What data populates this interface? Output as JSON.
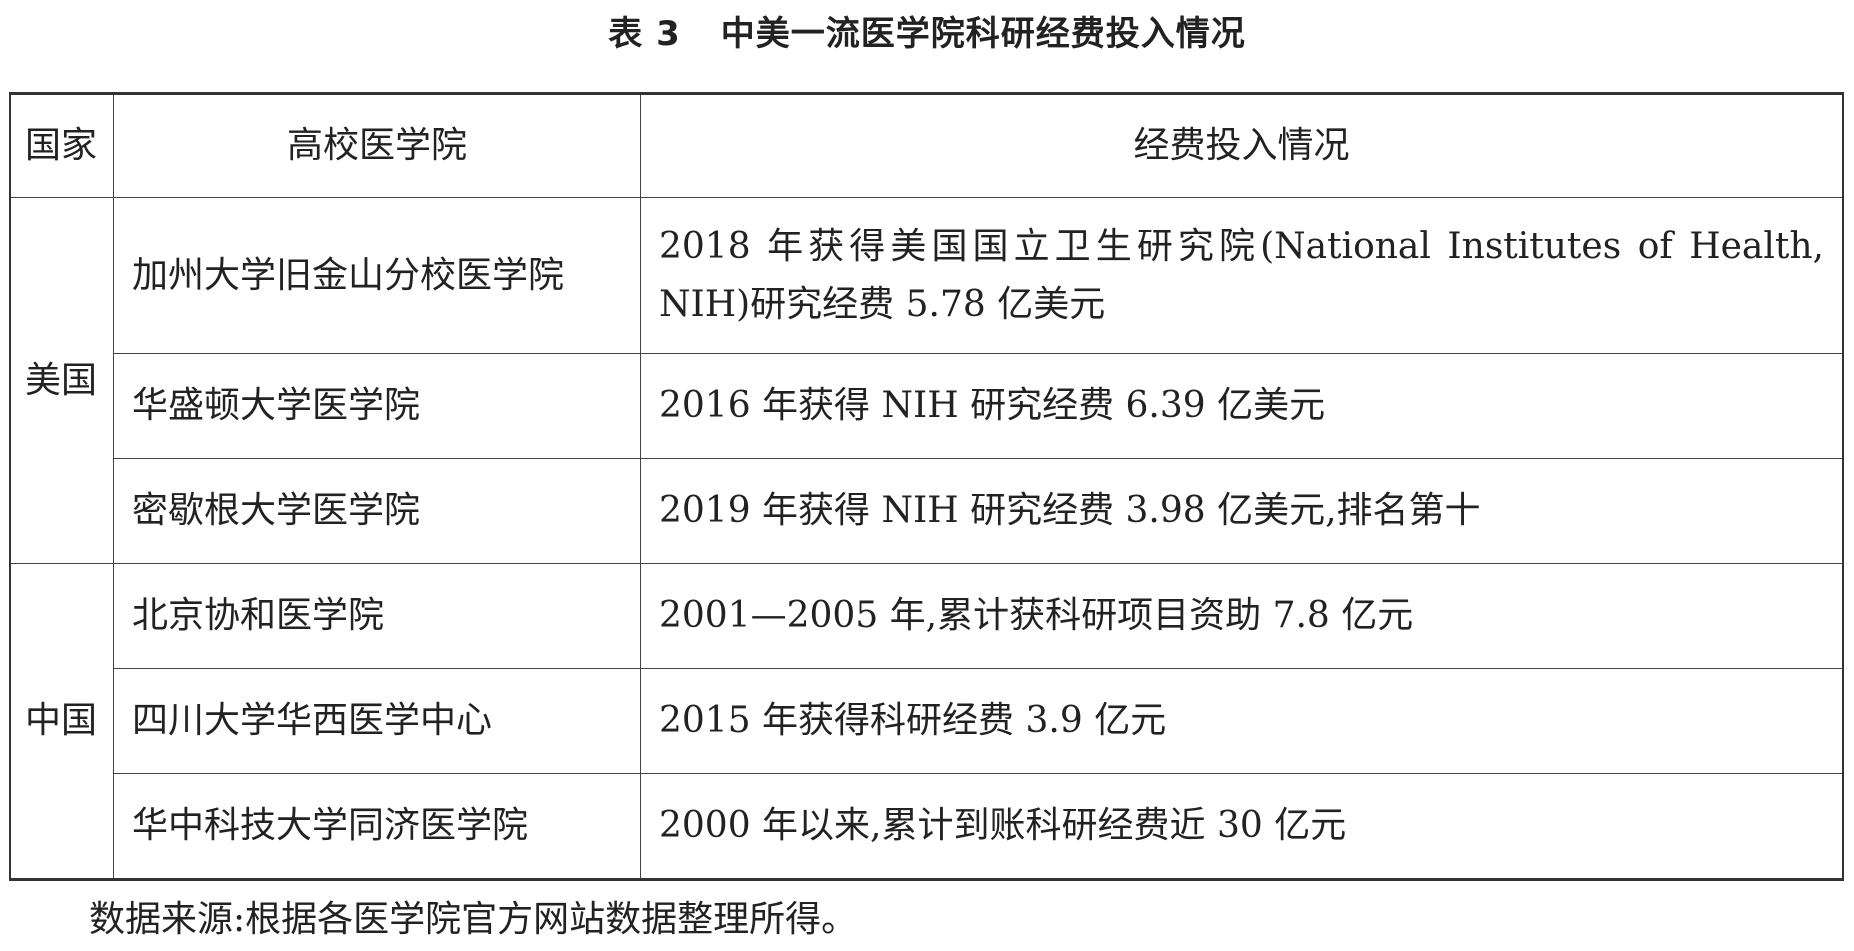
{
  "title": {
    "number": "表 3",
    "text": "中美一流医学院科研经费投入情况"
  },
  "table": {
    "headers": [
      "国家",
      "高校医学院",
      "经费投入情况"
    ],
    "groups": [
      {
        "country": "美国",
        "rows": [
          {
            "school": "加州大学旧金山分校医学院",
            "funding": "2018 年获得美国国立卫生研究院(National Institutes of Health, NIH)研究经费 5.78 亿美元"
          },
          {
            "school": "华盛顿大学医学院",
            "funding": "2016 年获得 NIH 研究经费 6.39 亿美元"
          },
          {
            "school": "密歇根大学医学院",
            "funding": "2019 年获得 NIH 研究经费 3.98 亿美元,排名第十"
          }
        ]
      },
      {
        "country": "中国",
        "rows": [
          {
            "school": "北京协和医学院",
            "funding": "2001—2005 年,累计获科研项目资助 7.8 亿元"
          },
          {
            "school": "四川大学华西医学中心",
            "funding": "2015 年获得科研经费 3.9 亿元"
          },
          {
            "school": "华中科技大学同济医学院",
            "funding": "2000 年以来,累计到账科研经费近 30 亿元"
          }
        ]
      }
    ]
  },
  "footer": "数据来源:根据各医学院官方网站数据整理所得。"
}
